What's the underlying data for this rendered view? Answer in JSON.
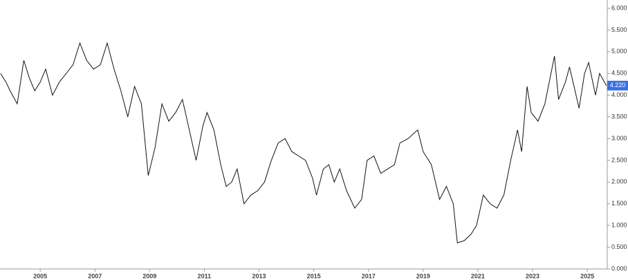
{
  "chart_data": {
    "type": "line",
    "x": [
      2003.55,
      2003.75,
      2003.9,
      2004.16,
      2004.4,
      2004.6,
      2004.8,
      2005.0,
      2005.2,
      2005.45,
      2005.7,
      2005.95,
      2006.2,
      2006.45,
      2006.7,
      2006.95,
      2007.2,
      2007.45,
      2007.7,
      2007.95,
      2008.2,
      2008.45,
      2008.7,
      2008.95,
      2009.2,
      2009.45,
      2009.7,
      2009.95,
      2010.2,
      2010.45,
      2010.7,
      2010.95,
      2011.1,
      2011.35,
      2011.6,
      2011.8,
      2012.0,
      2012.2,
      2012.45,
      2012.7,
      2012.95,
      2013.2,
      2013.45,
      2013.7,
      2013.95,
      2014.2,
      2014.45,
      2014.7,
      2014.95,
      2015.1,
      2015.35,
      2015.55,
      2015.75,
      2015.95,
      2016.2,
      2016.5,
      2016.75,
      2016.95,
      2017.2,
      2017.45,
      2017.7,
      2017.95,
      2018.15,
      2018.45,
      2018.8,
      2019.0,
      2019.3,
      2019.6,
      2019.85,
      2020.1,
      2020.25,
      2020.5,
      2020.75,
      2020.95,
      2021.2,
      2021.45,
      2021.7,
      2021.95,
      2022.2,
      2022.45,
      2022.6,
      2022.8,
      2022.95,
      2023.2,
      2023.45,
      2023.8,
      2023.95,
      2024.2,
      2024.35,
      2024.7,
      2024.9,
      2025.05,
      2025.3,
      2025.45,
      2025.7
    ],
    "series": [
      {
        "color": "#111111",
        "values": [
          4.5,
          4.3,
          4.1,
          3.8,
          4.8,
          4.4,
          4.1,
          4.3,
          4.6,
          4.0,
          4.3,
          4.5,
          4.7,
          5.2,
          4.8,
          4.6,
          4.7,
          5.2,
          4.6,
          4.1,
          3.5,
          4.2,
          3.8,
          2.15,
          2.8,
          3.8,
          3.4,
          3.6,
          3.9,
          3.2,
          2.5,
          3.3,
          3.6,
          3.2,
          2.4,
          1.9,
          2.0,
          2.3,
          1.5,
          1.7,
          1.8,
          2.0,
          2.5,
          2.9,
          3.0,
          2.7,
          2.6,
          2.5,
          2.1,
          1.7,
          2.3,
          2.4,
          2.0,
          2.3,
          1.8,
          1.4,
          1.6,
          2.5,
          2.6,
          2.2,
          2.3,
          2.4,
          2.9,
          3.0,
          3.2,
          2.7,
          2.4,
          1.6,
          1.9,
          1.5,
          0.6,
          0.65,
          0.8,
          1.0,
          1.7,
          1.5,
          1.4,
          1.7,
          2.5,
          3.2,
          2.7,
          4.2,
          3.6,
          3.4,
          3.8,
          4.9,
          3.9,
          4.3,
          4.65,
          3.7,
          4.5,
          4.75,
          4.0,
          4.5,
          4.22
        ]
      }
    ],
    "xlim": [
      2003.53,
      2025.73
    ],
    "xticks": [
      2005,
      2007,
      2009,
      2011,
      2013,
      2015,
      2017,
      2019,
      2021,
      2023,
      2025
    ],
    "ylim": [
      0,
      6
    ],
    "yticks": [
      {
        "value": 0,
        "label": "0.000"
      },
      {
        "value": 0.5,
        "label": "0.500"
      },
      {
        "value": 1,
        "label": "1.000"
      },
      {
        "value": 1.5,
        "label": "1.500"
      },
      {
        "value": 2,
        "label": "2.000"
      },
      {
        "value": 2.5,
        "label": "2.500"
      },
      {
        "value": 3,
        "label": "3.000"
      },
      {
        "value": 3.5,
        "label": "3.500"
      },
      {
        "value": 4,
        "label": "4.000"
      },
      {
        "value": 4.5,
        "label": "4.500"
      },
      {
        "value": 5,
        "label": "5.000"
      },
      {
        "value": 5.5,
        "label": "5.500"
      },
      {
        "value": 6,
        "label": "6.000"
      }
    ],
    "last_value": {
      "value": 4.22,
      "label": "4.220",
      "color": "#3d6fe0"
    }
  }
}
